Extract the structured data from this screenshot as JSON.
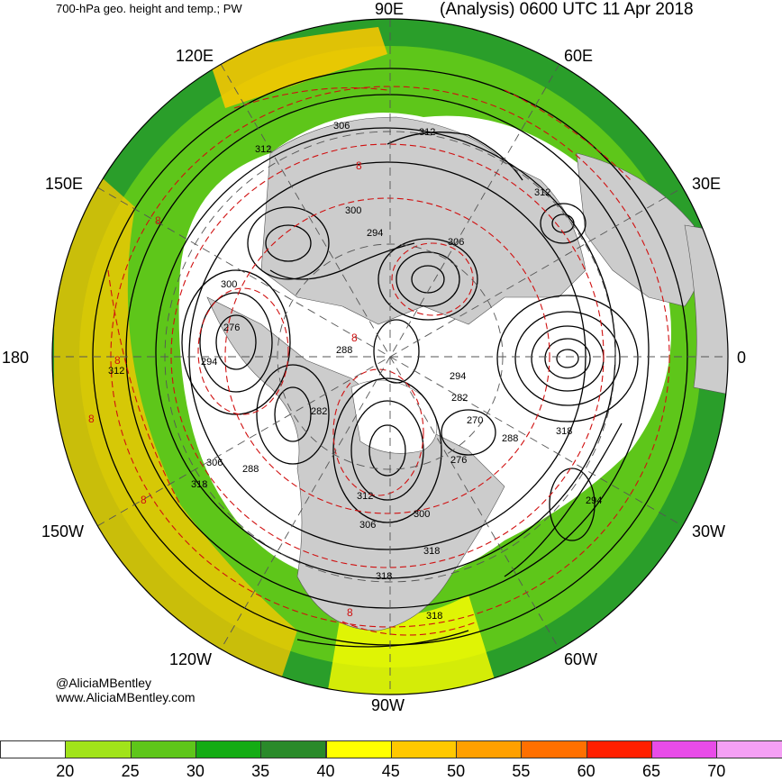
{
  "header": {
    "title_left": "700-hPa geo. height and temp.; PW",
    "title_right": "(Analysis) 0600 UTC 11 Apr 2018"
  },
  "longitude_labels": {
    "e90": "90E",
    "e60": "60E",
    "e120": "120E",
    "e150": "150E",
    "e30": "30E",
    "e0": "0",
    "e180": "180",
    "w150": "150W",
    "w30": "30W",
    "w120": "120W",
    "w60": "60W",
    "w90": "90W"
  },
  "credit": {
    "handle": "@AliciaMBentley",
    "site": "www.AliciaMBentley.com"
  },
  "contour_labels": [
    "306",
    "312",
    "312",
    "300",
    "294",
    "306",
    "312",
    "300",
    "276",
    "294",
    "288",
    "282",
    "294",
    "282",
    "270",
    "276",
    "288",
    "300",
    "306",
    "312",
    "318",
    "318",
    "312",
    "306",
    "288",
    "318",
    "294",
    "318",
    "318"
  ],
  "temp_labels": [
    "8",
    "8",
    "8",
    "8",
    "8",
    "8",
    "8"
  ],
  "colorbar": {
    "ticks": [
      "20",
      "25",
      "30",
      "35",
      "40",
      "45",
      "50",
      "55",
      "60",
      "65",
      "70"
    ],
    "colors": [
      "#ffffff",
      "#a1e31a",
      "#5ec61a",
      "#14ac14",
      "#2a8a2a",
      "#ffff00",
      "#ffc800",
      "#ffa000",
      "#ff7000",
      "#ff2000",
      "#e84ce8",
      "#f4a0f4"
    ]
  }
}
